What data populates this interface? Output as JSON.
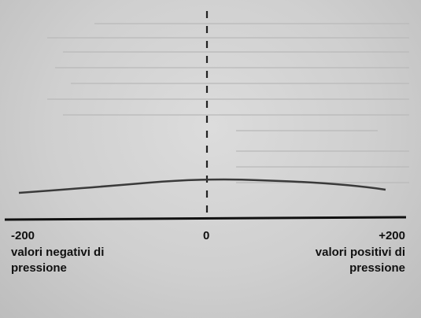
{
  "axis": {
    "min_label": "-200",
    "zero_label": "0",
    "max_label": "+200"
  },
  "captions": {
    "negative": [
      "valori negativi di",
      "pressione"
    ],
    "positive": [
      "valori positivi di",
      "pressione"
    ]
  },
  "colors": {
    "background": "#cfcfcf",
    "ink": "#111111",
    "curve": "#3a3a3a"
  }
}
